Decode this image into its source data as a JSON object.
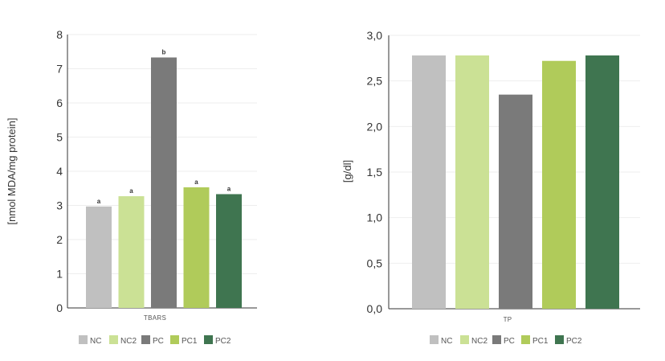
{
  "colors": {
    "NC": "#c0c0c0",
    "NC2": "#cbe195",
    "PC": "#7a7a7a",
    "PC1": "#b0cb5a",
    "PC2": "#3f7550",
    "grid": "#eeeeee",
    "axis": "#333333"
  },
  "chart_data": [
    {
      "type": "bar",
      "categories": [
        "NC",
        "NC2",
        "PC",
        "PC1",
        "PC2"
      ],
      "values": [
        2.97,
        3.27,
        7.33,
        3.53,
        3.33
      ],
      "significance": [
        "a",
        "a",
        "b",
        "a",
        "a"
      ],
      "xlabel": "TBARS",
      "ylabel": "[nmol MDA/mg protein]",
      "ylim": [
        0,
        8
      ],
      "yticks": [
        "0",
        "1",
        "2",
        "3",
        "4",
        "5",
        "6",
        "7",
        "8"
      ],
      "grid": true,
      "legend": [
        "NC",
        "NC2",
        "PC",
        "PC1",
        "PC2"
      ],
      "legend_position": "bottom"
    },
    {
      "type": "bar",
      "categories": [
        "NC",
        "NC2",
        "PC",
        "PC1",
        "PC2"
      ],
      "values": [
        2.78,
        2.78,
        2.35,
        2.72,
        2.78
      ],
      "xlabel": "TP",
      "ylabel": "[g/dl]",
      "ylim": [
        0,
        3
      ],
      "yticks": [
        "0,0",
        "0,5",
        "1,0",
        "1,5",
        "2,0",
        "2,5",
        "3,0"
      ],
      "grid": true,
      "legend": [
        "NC",
        "NC2",
        "PC",
        "PC1",
        "PC2"
      ],
      "legend_position": "bottom"
    }
  ]
}
